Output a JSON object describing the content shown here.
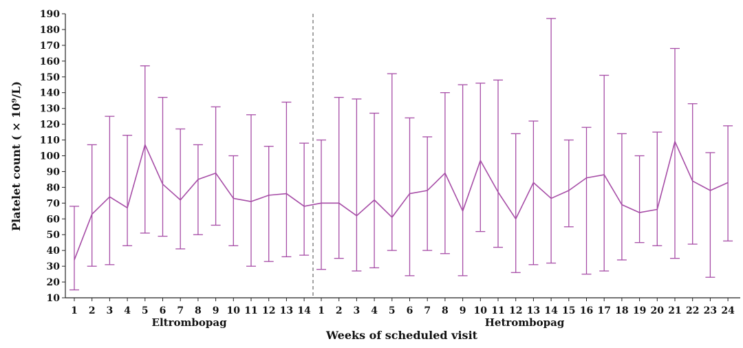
{
  "chart_data": {
    "type": "line",
    "xlabel": "Weeks of scheduled visit",
    "ylabel": "Platelet count ( × 10⁹/L)",
    "ylim": [
      10,
      190
    ],
    "yticks": [
      10,
      20,
      30,
      40,
      50,
      60,
      70,
      80,
      90,
      100,
      110,
      120,
      130,
      140,
      150,
      160,
      170,
      180,
      190
    ],
    "color": "#a64ca6",
    "error_bars": true,
    "groups": [
      {
        "name": "Eltrombopag",
        "weeks": [
          "1",
          "2",
          "3",
          "4",
          "5",
          "6",
          "7",
          "8",
          "9",
          "10",
          "11",
          "12",
          "13",
          "14"
        ],
        "mean": [
          34,
          63,
          74,
          67,
          107,
          82,
          72,
          85,
          89,
          73,
          71,
          75,
          76,
          68
        ],
        "upper": [
          68,
          107,
          125,
          113,
          157,
          137,
          117,
          107,
          131,
          100,
          126,
          106,
          134,
          108
        ],
        "lower": [
          15,
          30,
          31,
          43,
          51,
          49,
          41,
          50,
          56,
          43,
          30,
          33,
          36,
          37
        ]
      },
      {
        "name": "Hetrombopag",
        "weeks": [
          "1",
          "2",
          "3",
          "4",
          "5",
          "6",
          "7",
          "8",
          "9",
          "10",
          "11",
          "12",
          "13",
          "14",
          "15",
          "16",
          "17",
          "18",
          "19",
          "20",
          "21",
          "22",
          "23",
          "24"
        ],
        "mean": [
          70,
          70,
          62,
          72,
          61,
          76,
          78,
          89,
          65,
          97,
          77,
          60,
          83,
          73,
          78,
          86,
          88,
          69,
          64,
          66,
          109,
          84,
          78,
          83
        ],
        "upper": [
          110,
          137,
          136,
          127,
          152,
          124,
          112,
          140,
          145,
          146,
          148,
          114,
          122,
          187,
          110,
          118,
          151,
          114,
          100,
          115,
          168,
          133,
          102,
          119
        ],
        "lower": [
          28,
          35,
          27,
          29,
          40,
          24,
          40,
          38,
          24,
          52,
          42,
          26,
          31,
          32,
          55,
          25,
          27,
          34,
          45,
          43,
          35,
          44,
          23,
          46
        ]
      }
    ]
  }
}
